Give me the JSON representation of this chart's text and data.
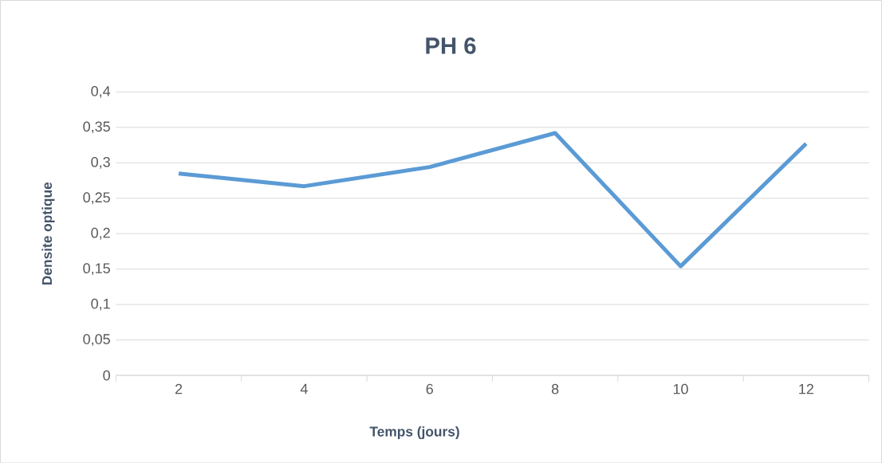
{
  "chart_data": {
    "type": "line",
    "title": "PH 6",
    "xlabel": "Temps (jours)",
    "ylabel": "Densite optique",
    "categories": [
      "2",
      "4",
      "6",
      "8",
      "10",
      "12"
    ],
    "series": [
      {
        "color": "#5b9bd5",
        "values": [
          0.285,
          0.267,
          0.294,
          0.342,
          0.154,
          0.327
        ]
      }
    ],
    "ylim": [
      0,
      0.4
    ],
    "yticks": [
      0,
      {
        "value": 0.05,
        "label": "0,05"
      },
      {
        "value": 0.1,
        "label": "0,1"
      },
      {
        "value": 0.15,
        "label": "0,15"
      },
      {
        "value": 0.2,
        "label": "0,2"
      },
      {
        "value": 0.25,
        "label": "0,25"
      },
      {
        "value": 0.3,
        "label": "0,3"
      },
      {
        "value": 0.35,
        "label": "0,35"
      },
      {
        "value": 0.4,
        "label": "0,4"
      }
    ],
    "grid": "y",
    "marker": "none",
    "line_style": "solid"
  }
}
